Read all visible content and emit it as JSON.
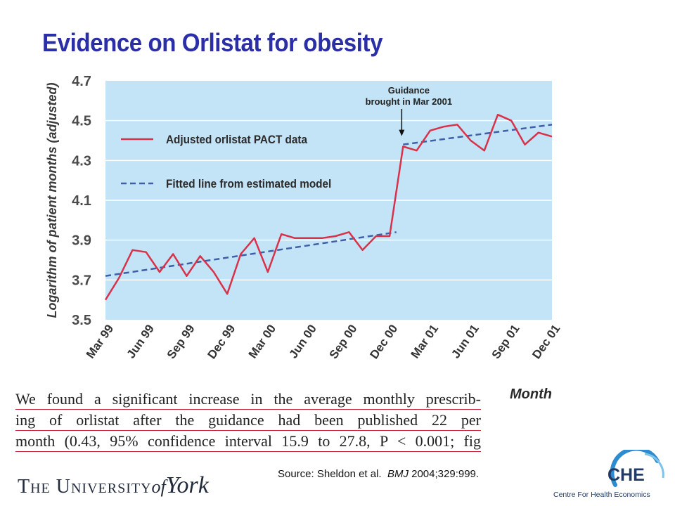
{
  "slide": {
    "title": "Evidence on Orlistat for obesity",
    "source_prefix": "Source: Sheldon et al.",
    "source_journal": "BMJ",
    "source_ref": "2004;329:999."
  },
  "excerpt": {
    "lines": [
      "We found a significant increase in the average monthly prescrib-",
      "ing of orlistat after the guidance had been published 22 per",
      "month (0.43, 95% confidence interval 15.9 to 27.8, P < 0.001; fig"
    ]
  },
  "logos": {
    "university": {
      "caps": "The University",
      "of": "of",
      "york": "York"
    },
    "che": {
      "acronym": "CHE",
      "name": "Centre For Health Economics"
    }
  },
  "colors": {
    "plot_background": "#c3e3f6",
    "actual_line": "#d8324a",
    "fitted_line": "#3f5fa8",
    "title": "#2b2fa6"
  },
  "chart_data": {
    "type": "line",
    "title": "",
    "xlabel": "Month",
    "ylabel": "Logarithm of patient months (adjusted)",
    "ylim": [
      3.5,
      4.7
    ],
    "yticks": [
      3.5,
      3.7,
      3.9,
      4.1,
      4.3,
      4.5,
      4.7
    ],
    "grid": true,
    "legend_position": "top-left",
    "x_tick_labels": [
      "Mar 99",
      "Jun 99",
      "Sep 99",
      "Dec 99",
      "Mar 00",
      "Jun 00",
      "Sep 00",
      "Dec 00",
      "Mar 01",
      "Jun 01",
      "Sep 01",
      "Dec 01"
    ],
    "x_tick_month_index": [
      0,
      3,
      6,
      9,
      12,
      15,
      18,
      21,
      24,
      27,
      30,
      33
    ],
    "series": [
      {
        "name": "Adjusted orlistat PACT data",
        "style": "solid",
        "start_month": "Mar 99",
        "values": [
          3.6,
          3.71,
          3.85,
          3.84,
          3.74,
          3.83,
          3.72,
          3.82,
          3.74,
          3.63,
          3.83,
          3.91,
          3.74,
          3.93,
          3.91,
          3.91,
          3.91,
          3.92,
          3.94,
          3.85,
          3.92,
          3.92,
          4.37,
          4.35,
          4.45,
          4.47,
          4.48,
          4.4,
          4.35,
          4.53,
          4.5,
          4.38,
          4.44,
          4.42
        ]
      },
      {
        "name": "Fitted line from estimated model",
        "style": "dashed",
        "segments": [
          {
            "x": [
              0,
              21.5
            ],
            "y": [
              3.72,
              3.94
            ]
          },
          {
            "x": [
              22,
              33
            ],
            "y": [
              4.38,
              4.48
            ]
          }
        ]
      }
    ],
    "annotations": [
      {
        "text_lines": [
          "Guidance",
          "brought in Mar 2001"
        ],
        "x": 22,
        "y": 4.38
      }
    ]
  }
}
